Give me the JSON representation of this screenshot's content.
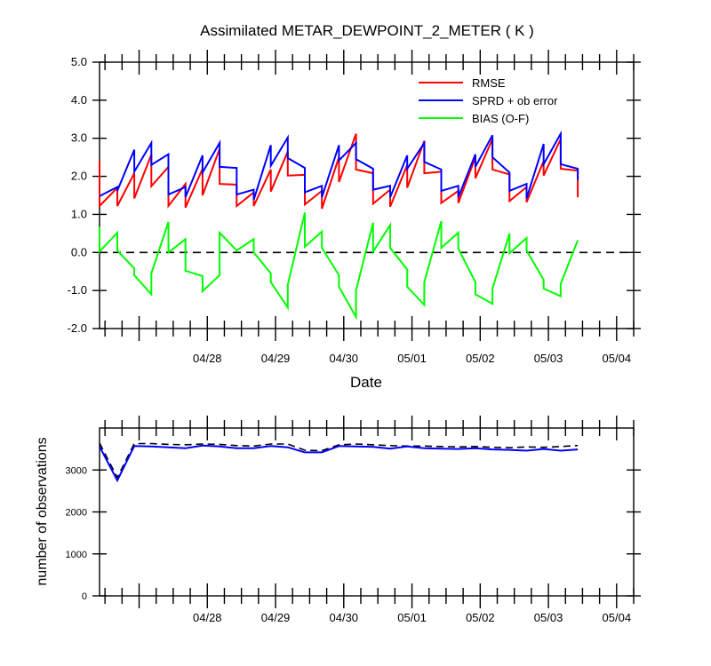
{
  "chart_data": [
    {
      "type": "line",
      "title": "Assimilated METAR_DEWPOINT_2_METER ( K )",
      "xlabel": "Date",
      "ylabel": "",
      "ylim": [
        -2.0,
        5.0
      ],
      "yticks": [
        "-2.0",
        "-1.0",
        "0.0",
        "1.0",
        "2.0",
        "3.0",
        "4.0",
        "5.0"
      ],
      "categories": [
        "04/28",
        "04/29",
        "04/30",
        "05/01",
        "05/02",
        "05/03",
        "05/04"
      ],
      "x_tick_positions": [
        1.0,
        2.0,
        3.0,
        4.0,
        5.0,
        6.0,
        7.0
      ],
      "xlim": [
        -0.58,
        7.25
      ],
      "grid": false,
      "legend_position": "top-right",
      "series": [
        {
          "name": "RMSE",
          "color": "#ff0000",
          "points": [
            [
              -0.58,
              2.4
            ],
            [
              -0.58,
              1.22
            ],
            [
              -0.32,
              1.7
            ],
            [
              -0.32,
              1.22
            ],
            [
              -0.07,
              2.08
            ],
            [
              -0.07,
              1.42
            ],
            [
              0.18,
              2.57
            ],
            [
              0.18,
              1.74
            ],
            [
              0.43,
              2.25
            ],
            [
              0.43,
              1.22
            ],
            [
              0.68,
              1.8
            ],
            [
              0.68,
              1.18
            ],
            [
              0.93,
              2.2
            ],
            [
              0.93,
              1.5
            ],
            [
              1.18,
              2.72
            ],
            [
              1.18,
              1.8
            ],
            [
              1.43,
              1.78
            ],
            [
              1.43,
              1.22
            ],
            [
              1.68,
              1.58
            ],
            [
              1.68,
              1.22
            ],
            [
              1.93,
              2.18
            ],
            [
              1.93,
              1.6
            ],
            [
              2.18,
              2.65
            ],
            [
              2.18,
              2.02
            ],
            [
              2.43,
              2.04
            ],
            [
              2.43,
              1.26
            ],
            [
              2.68,
              1.62
            ],
            [
              2.68,
              1.15
            ],
            [
              2.93,
              2.5
            ],
            [
              2.93,
              1.85
            ],
            [
              3.18,
              3.12
            ],
            [
              3.18,
              2.18
            ],
            [
              3.43,
              2.08
            ],
            [
              3.43,
              1.28
            ],
            [
              3.68,
              1.65
            ],
            [
              3.68,
              1.2
            ],
            [
              3.93,
              2.3
            ],
            [
              3.93,
              1.7
            ],
            [
              4.18,
              2.93
            ],
            [
              4.18,
              2.08
            ],
            [
              4.43,
              2.12
            ],
            [
              4.43,
              1.3
            ],
            [
              4.68,
              1.62
            ],
            [
              4.68,
              1.3
            ],
            [
              4.93,
              2.5
            ],
            [
              4.93,
              1.95
            ],
            [
              5.18,
              2.98
            ],
            [
              5.18,
              2.18
            ],
            [
              5.43,
              2.05
            ],
            [
              5.43,
              1.35
            ],
            [
              5.68,
              1.72
            ],
            [
              5.68,
              1.32
            ],
            [
              5.93,
              2.4
            ],
            [
              5.93,
              2.02
            ],
            [
              6.18,
              2.98
            ],
            [
              6.18,
              2.2
            ],
            [
              6.43,
              2.15
            ],
            [
              6.43,
              1.45
            ]
          ]
        },
        {
          "name": "SPRD + ob error",
          "color": "#0000ff",
          "points": [
            [
              -0.58,
              1.48
            ],
            [
              -0.32,
              1.72
            ],
            [
              -0.32,
              1.62
            ],
            [
              -0.07,
              2.7
            ],
            [
              -0.07,
              2.12
            ],
            [
              0.18,
              2.88
            ],
            [
              0.18,
              2.3
            ],
            [
              0.43,
              2.58
            ],
            [
              0.43,
              1.52
            ],
            [
              0.68,
              1.72
            ],
            [
              0.68,
              1.45
            ],
            [
              0.93,
              2.55
            ],
            [
              0.93,
              2.1
            ],
            [
              1.18,
              2.88
            ],
            [
              1.18,
              2.25
            ],
            [
              1.43,
              2.22
            ],
            [
              1.43,
              1.52
            ],
            [
              1.68,
              1.65
            ],
            [
              1.68,
              1.38
            ],
            [
              1.93,
              2.82
            ],
            [
              1.93,
              2.28
            ],
            [
              2.18,
              3.02
            ],
            [
              2.18,
              2.48
            ],
            [
              2.43,
              2.22
            ],
            [
              2.43,
              1.58
            ],
            [
              2.68,
              1.75
            ],
            [
              2.68,
              1.45
            ],
            [
              2.93,
              2.82
            ],
            [
              2.93,
              2.42
            ],
            [
              3.18,
              2.88
            ],
            [
              3.18,
              2.45
            ],
            [
              3.43,
              2.2
            ],
            [
              3.43,
              1.65
            ],
            [
              3.68,
              1.75
            ],
            [
              3.68,
              1.45
            ],
            [
              3.93,
              2.55
            ],
            [
              3.93,
              2.2
            ],
            [
              4.18,
              2.88
            ],
            [
              4.18,
              2.38
            ],
            [
              4.43,
              2.18
            ],
            [
              4.43,
              1.62
            ],
            [
              4.68,
              1.75
            ],
            [
              4.68,
              1.45
            ],
            [
              4.93,
              2.58
            ],
            [
              4.93,
              2.25
            ],
            [
              5.18,
              3.08
            ],
            [
              5.18,
              2.5
            ],
            [
              5.43,
              2.1
            ],
            [
              5.43,
              1.62
            ],
            [
              5.68,
              1.8
            ],
            [
              5.68,
              1.42
            ],
            [
              5.93,
              2.85
            ],
            [
              5.93,
              2.32
            ],
            [
              6.18,
              3.12
            ],
            [
              6.18,
              2.32
            ],
            [
              6.43,
              2.2
            ],
            [
              6.43,
              1.9
            ]
          ]
        },
        {
          "name": "BIAS (O-F)",
          "color": "#00ff00",
          "points": [
            [
              -0.58,
              0.68
            ],
            [
              -0.58,
              0.02
            ],
            [
              -0.32,
              0.52
            ],
            [
              -0.32,
              0.05
            ],
            [
              -0.07,
              -0.42
            ],
            [
              -0.07,
              -0.6
            ],
            [
              0.18,
              -1.1
            ],
            [
              0.18,
              -0.55
            ],
            [
              0.43,
              0.8
            ],
            [
              0.43,
              0.0
            ],
            [
              0.68,
              0.35
            ],
            [
              0.68,
              -0.48
            ],
            [
              0.93,
              -0.62
            ],
            [
              0.93,
              -1.02
            ],
            [
              1.18,
              -0.6
            ],
            [
              1.18,
              0.52
            ],
            [
              1.43,
              0.05
            ],
            [
              1.43,
              0.05
            ],
            [
              1.68,
              0.35
            ],
            [
              1.68,
              0.0
            ],
            [
              1.93,
              -0.55
            ],
            [
              1.93,
              -0.78
            ],
            [
              2.18,
              -1.45
            ],
            [
              2.18,
              -0.85
            ],
            [
              2.43,
              1.05
            ],
            [
              2.43,
              0.15
            ],
            [
              2.68,
              0.55
            ],
            [
              2.68,
              0.12
            ],
            [
              2.93,
              -0.6
            ],
            [
              2.93,
              -0.9
            ],
            [
              3.18,
              -1.7
            ],
            [
              3.18,
              -1.0
            ],
            [
              3.43,
              0.78
            ],
            [
              3.43,
              0.02
            ],
            [
              3.68,
              0.72
            ],
            [
              3.68,
              0.12
            ],
            [
              3.93,
              -0.45
            ],
            [
              3.93,
              -0.9
            ],
            [
              4.18,
              -1.38
            ],
            [
              4.18,
              -0.78
            ],
            [
              4.43,
              0.82
            ],
            [
              4.43,
              0.12
            ],
            [
              4.68,
              0.52
            ],
            [
              4.68,
              0.1
            ],
            [
              4.93,
              -0.78
            ],
            [
              4.93,
              -1.1
            ],
            [
              5.18,
              -1.35
            ],
            [
              5.18,
              -0.95
            ],
            [
              5.43,
              0.5
            ],
            [
              5.43,
              -0.02
            ],
            [
              5.68,
              0.38
            ],
            [
              5.68,
              0.05
            ],
            [
              5.93,
              -0.72
            ],
            [
              5.93,
              -0.95
            ],
            [
              6.18,
              -1.15
            ],
            [
              6.18,
              -0.82
            ],
            [
              6.43,
              0.32
            ]
          ]
        }
      ],
      "reference_line": {
        "y": 0.0,
        "style": "dashed",
        "color": "#000000"
      }
    },
    {
      "type": "line",
      "title": "",
      "xlabel": "",
      "ylabel": "number of observations",
      "ylim": [
        0,
        4000
      ],
      "yticks": [
        "0",
        "1000",
        "2000",
        "3000"
      ],
      "categories": [
        "04/28",
        "04/29",
        "04/30",
        "05/01",
        "05/02",
        "05/03",
        "05/04"
      ],
      "x_tick_positions": [
        1.0,
        2.0,
        3.0,
        4.0,
        5.0,
        6.0,
        7.0
      ],
      "xlim": [
        -0.58,
        7.25
      ],
      "grid": false,
      "series": [
        {
          "name": "",
          "color": "#000000",
          "style": "dashed",
          "points": [
            [
              -0.58,
              3640
            ],
            [
              -0.32,
              2820
            ],
            [
              -0.07,
              3630
            ],
            [
              0.18,
              3630
            ],
            [
              0.43,
              3610
            ],
            [
              0.68,
              3600
            ],
            [
              0.93,
              3620
            ],
            [
              1.18,
              3610
            ],
            [
              1.43,
              3580
            ],
            [
              1.68,
              3570
            ],
            [
              1.93,
              3620
            ],
            [
              2.18,
              3620
            ],
            [
              2.43,
              3470
            ],
            [
              2.68,
              3460
            ],
            [
              2.93,
              3600
            ],
            [
              3.18,
              3620
            ],
            [
              3.43,
              3600
            ],
            [
              3.68,
              3580
            ],
            [
              3.93,
              3570
            ],
            [
              4.18,
              3570
            ],
            [
              4.43,
              3560
            ],
            [
              4.68,
              3550
            ],
            [
              4.93,
              3560
            ],
            [
              5.18,
              3540
            ],
            [
              5.43,
              3530
            ],
            [
              5.68,
              3550
            ],
            [
              5.93,
              3540
            ],
            [
              6.18,
              3560
            ],
            [
              6.43,
              3580
            ]
          ]
        },
        {
          "name": "",
          "color": "#0000ff",
          "style": "solid",
          "points": [
            [
              -0.58,
              3560
            ],
            [
              -0.32,
              2750
            ],
            [
              -0.07,
              3570
            ],
            [
              0.18,
              3560
            ],
            [
              0.43,
              3540
            ],
            [
              0.68,
              3520
            ],
            [
              0.93,
              3580
            ],
            [
              1.18,
              3560
            ],
            [
              1.43,
              3520
            ],
            [
              1.68,
              3520
            ],
            [
              1.93,
              3570
            ],
            [
              2.18,
              3540
            ],
            [
              2.43,
              3420
            ],
            [
              2.68,
              3420
            ],
            [
              2.93,
              3570
            ],
            [
              3.18,
              3560
            ],
            [
              3.43,
              3550
            ],
            [
              3.68,
              3510
            ],
            [
              3.93,
              3560
            ],
            [
              4.18,
              3520
            ],
            [
              4.43,
              3510
            ],
            [
              4.68,
              3500
            ],
            [
              4.93,
              3520
            ],
            [
              5.18,
              3490
            ],
            [
              5.43,
              3480
            ],
            [
              5.68,
              3460
            ],
            [
              5.93,
              3500
            ],
            [
              6.18,
              3460
            ],
            [
              6.43,
              3490
            ]
          ]
        }
      ]
    }
  ]
}
